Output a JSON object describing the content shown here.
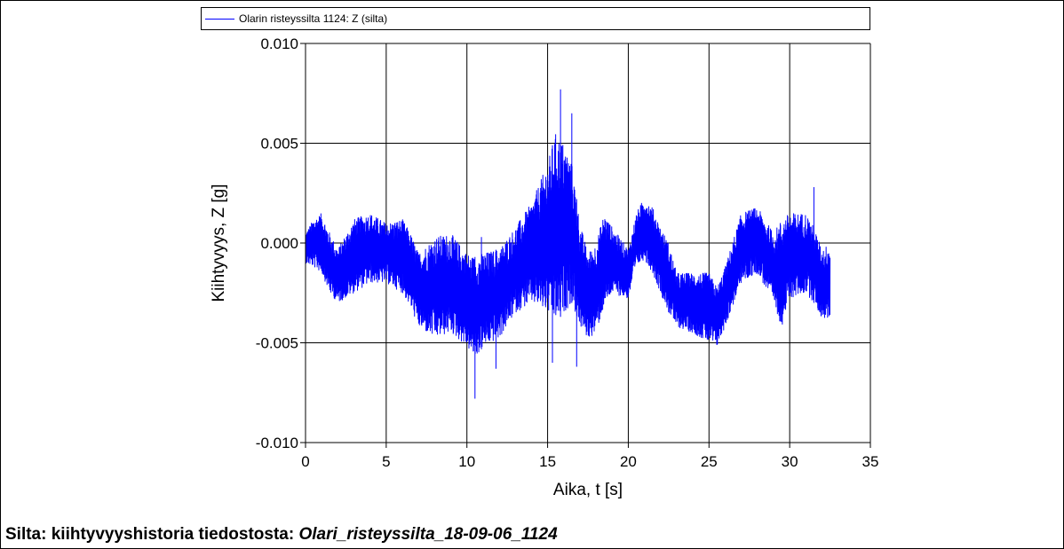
{
  "chart_data": {
    "type": "line",
    "xlabel": "Aika, t  [s]",
    "ylabel": "Kiihtyvyys, Z  [g]",
    "xlim": [
      0,
      35
    ],
    "ylim": [
      -0.01,
      0.01
    ],
    "xticks": [
      0,
      5,
      10,
      15,
      20,
      25,
      30,
      35
    ],
    "yticks": [
      -0.01,
      -0.005,
      0.0,
      0.005,
      0.01
    ],
    "xtick_labels": [
      "0",
      "5",
      "10",
      "15",
      "20",
      "25",
      "30",
      "35"
    ],
    "ytick_labels": [
      "-0.010",
      "-0.005",
      "0.000",
      "0.005",
      "0.010"
    ],
    "grid": true,
    "legend_position": "top",
    "series": [
      {
        "name": "Olarin risteyssilta 1124: Z (silta)",
        "color": "#0000ff",
        "x_end": 32.5,
        "envelope": {
          "x": [
            0,
            0.5,
            1.0,
            1.5,
            2.0,
            3.0,
            4.0,
            5.0,
            6.0,
            6.5,
            7.0,
            8.0,
            9.0,
            10.0,
            10.5,
            11.0,
            12.0,
            13.0,
            14.0,
            15.0,
            15.5,
            16.0,
            16.5,
            17.0,
            17.5,
            18.0,
            18.5,
            19.0,
            20.0,
            20.5,
            21.0,
            21.5,
            22.0,
            22.5,
            23.0,
            24.0,
            25.0,
            25.5,
            26.0,
            27.0,
            28.0,
            29.0,
            29.5,
            30.0,
            31.0,
            31.5,
            32.0,
            32.5
          ],
          "upper": [
            0.0005,
            0.0012,
            0.0015,
            0.0005,
            -0.0003,
            0.0012,
            0.0015,
            0.001,
            0.0012,
            0.0005,
            -0.0005,
            0.0003,
            0.0005,
            -0.0005,
            -0.0007,
            -0.0005,
            -0.0003,
            0.0008,
            0.002,
            0.004,
            0.0055,
            0.005,
            0.004,
            0.001,
            -0.0005,
            0.0,
            0.0015,
            0.0008,
            -0.0003,
            0.0015,
            0.0023,
            0.0018,
            0.0008,
            0.0,
            -0.0015,
            -0.0015,
            -0.0015,
            -0.0022,
            -0.0012,
            0.0015,
            0.0018,
            0.0005,
            0.0012,
            0.0015,
            0.0015,
            0.0008,
            -0.0003,
            0.0
          ],
          "lower": [
            -0.001,
            -0.0012,
            -0.0015,
            -0.0025,
            -0.003,
            -0.0025,
            -0.002,
            -0.002,
            -0.0025,
            -0.0032,
            -0.0042,
            -0.0048,
            -0.0045,
            -0.0052,
            -0.0058,
            -0.0052,
            -0.0048,
            -0.0035,
            -0.003,
            -0.0035,
            -0.004,
            -0.0035,
            -0.003,
            -0.0042,
            -0.0048,
            -0.0045,
            -0.0032,
            -0.0025,
            -0.0028,
            -0.0012,
            -0.0008,
            -0.0015,
            -0.0025,
            -0.0035,
            -0.0042,
            -0.0045,
            -0.005,
            -0.0052,
            -0.0042,
            -0.002,
            -0.0015,
            -0.003,
            -0.0042,
            -0.0028,
            -0.0025,
            -0.003,
            -0.0038,
            -0.0038
          ]
        },
        "annotated_peaks": [
          {
            "x": 15.8,
            "y": 0.0077
          },
          {
            "x": 16.5,
            "y": 0.0065
          },
          {
            "x": 10.5,
            "y": -0.0078
          },
          {
            "x": 11.8,
            "y": -0.0063
          },
          {
            "x": 16.8,
            "y": -0.0062
          },
          {
            "x": 15.3,
            "y": -0.006
          },
          {
            "x": 10.9,
            "y": 0.0003
          },
          {
            "x": 31.5,
            "y": 0.0028
          }
        ]
      }
    ]
  },
  "caption": {
    "prefix": "Silta: kiihtyvyyshistoria tiedostosta:",
    "filename": "Olari_risteyssilta_18-09-06_1124"
  }
}
